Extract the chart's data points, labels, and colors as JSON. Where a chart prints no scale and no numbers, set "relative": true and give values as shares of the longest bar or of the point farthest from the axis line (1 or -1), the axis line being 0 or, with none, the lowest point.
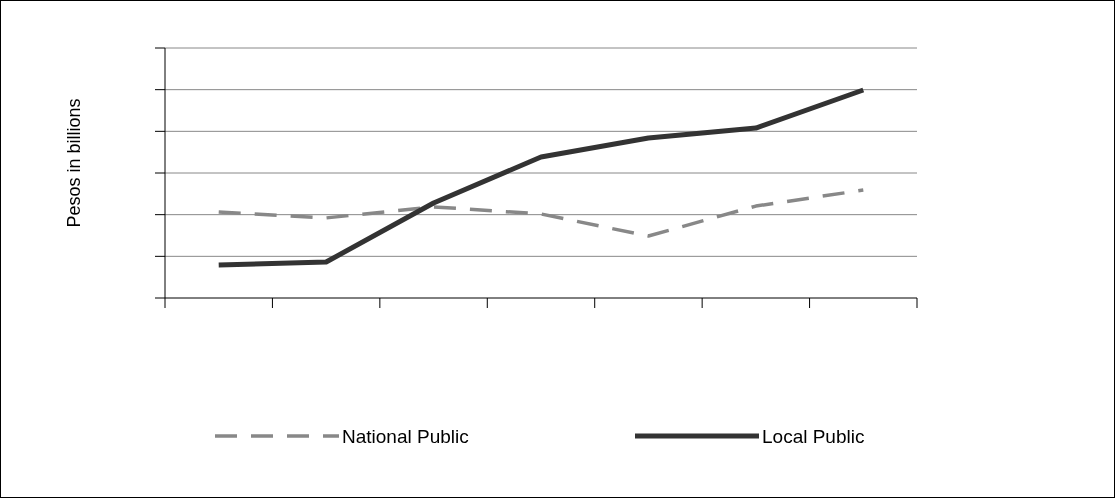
{
  "chart_data": {
    "type": "line",
    "ylabel": "Pesos in billions",
    "relative": true,
    "grid": "y",
    "legend": "bottom",
    "categories": [
      null,
      null,
      null,
      null,
      null,
      null,
      null
    ],
    "series": [
      {
        "name": "National Public",
        "color": "#888888",
        "line_style": "dashed",
        "values": [
          0.413,
          0.385,
          0.438,
          0.404,
          0.298,
          0.442,
          0.519
        ]
      },
      {
        "name": "Local Public",
        "color": "#333333",
        "line_style": "solid",
        "values": [
          0.159,
          0.173,
          0.457,
          0.678,
          0.769,
          0.817,
          1
        ]
      }
    ]
  }
}
